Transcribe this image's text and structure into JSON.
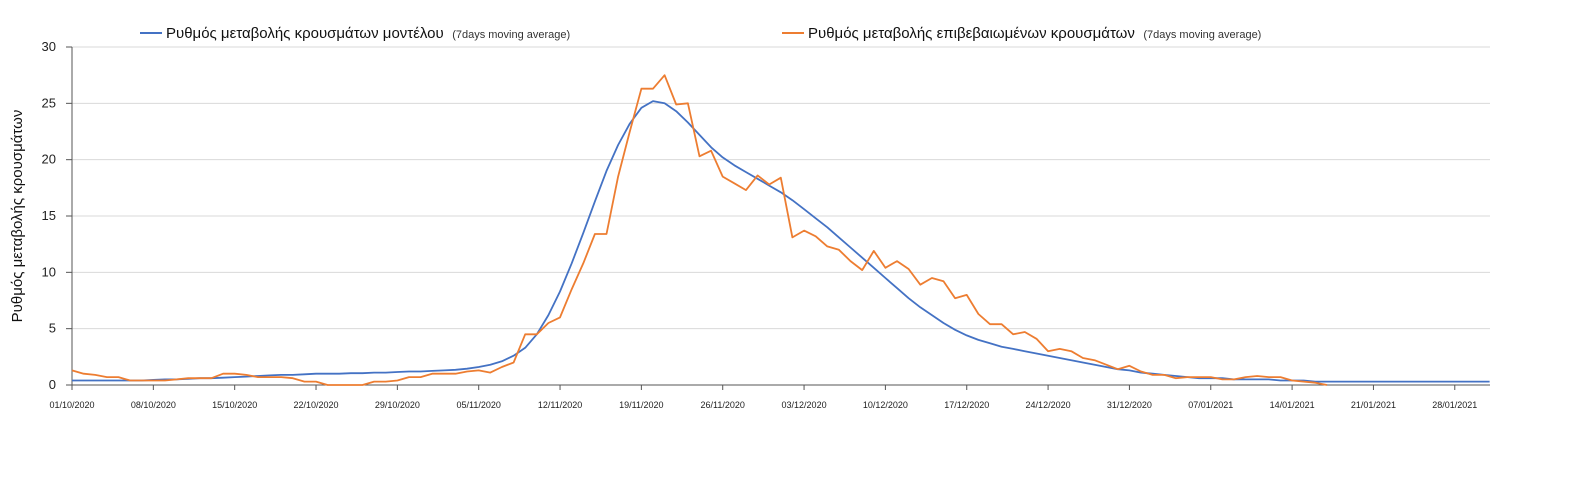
{
  "chart_data": {
    "type": "line",
    "title": "",
    "xlabel": "",
    "ylabel": "Ρυθμός μεταβολής κρουσμάτων",
    "ylim": [
      0,
      30
    ],
    "yticks": [
      0,
      5,
      10,
      15,
      20,
      25,
      30
    ],
    "grid": "horizontal",
    "legend_position": "top",
    "start_date": "01/10/2020",
    "xtick_labels": [
      "01/10/2020",
      "08/10/2020",
      "15/10/2020",
      "22/10/2020",
      "29/10/2020",
      "05/11/2020",
      "12/11/2020",
      "19/11/2020",
      "26/11/2020",
      "03/12/2020",
      "10/12/2020",
      "17/12/2020",
      "24/12/2020",
      "31/12/2020",
      "07/01/2021",
      "14/01/2021",
      "21/01/2021",
      "28/01/2021"
    ],
    "series": [
      {
        "name": "Ρυθμός μεταβολής κρουσμάτων μοντέλου",
        "name_suffix": "(7days moving average)",
        "color": "#4472c4",
        "values": [
          0.4,
          0.4,
          0.4,
          0.4,
          0.4,
          0.4,
          0.4,
          0.45,
          0.5,
          0.5,
          0.55,
          0.6,
          0.6,
          0.65,
          0.7,
          0.75,
          0.8,
          0.85,
          0.9,
          0.9,
          0.95,
          1.0,
          1.0,
          1.0,
          1.05,
          1.05,
          1.1,
          1.1,
          1.15,
          1.2,
          1.2,
          1.25,
          1.3,
          1.35,
          1.45,
          1.6,
          1.8,
          2.1,
          2.6,
          3.3,
          4.5,
          6.2,
          8.3,
          10.8,
          13.5,
          16.3,
          19.0,
          21.3,
          23.2,
          24.6,
          25.2,
          25.0,
          24.3,
          23.3,
          22.2,
          21.1,
          20.2,
          19.5,
          18.9,
          18.3,
          17.7,
          17.1,
          16.4,
          15.6,
          14.8,
          14.0,
          13.1,
          12.2,
          11.3,
          10.4,
          9.5,
          8.6,
          7.7,
          6.9,
          6.2,
          5.5,
          4.9,
          4.4,
          4.0,
          3.7,
          3.4,
          3.2,
          3.0,
          2.8,
          2.6,
          2.4,
          2.2,
          2.0,
          1.8,
          1.6,
          1.4,
          1.3,
          1.1,
          1.0,
          0.9,
          0.8,
          0.7,
          0.6,
          0.6,
          0.6,
          0.5,
          0.5,
          0.5,
          0.5,
          0.4,
          0.4,
          0.4,
          0.3,
          0.3,
          0.3,
          0.3,
          0.3,
          0.3,
          0.3,
          0.3,
          0.3,
          0.3,
          0.3,
          0.3,
          0.3,
          0.3,
          0.3,
          0.3
        ]
      },
      {
        "name": "Ρυθμός μεταβολής επιβεβαιωμένων κρουσμάτων",
        "name_suffix": "(7days moving average)",
        "color": "#ed7d31",
        "values": [
          1.3,
          1.0,
          0.9,
          0.7,
          0.7,
          0.4,
          0.4,
          0.4,
          0.4,
          0.5,
          0.6,
          0.6,
          0.6,
          1.0,
          1.0,
          0.9,
          0.7,
          0.7,
          0.7,
          0.6,
          0.3,
          0.3,
          0.0,
          0.0,
          0.0,
          0.0,
          0.3,
          0.3,
          0.4,
          0.7,
          0.7,
          1.0,
          1.0,
          1.0,
          1.2,
          1.3,
          1.1,
          1.6,
          2.0,
          4.5,
          4.5,
          5.5,
          6.0,
          8.5,
          10.8,
          13.4,
          13.4,
          18.5,
          22.5,
          26.3,
          26.3,
          27.5,
          24.9,
          25.0,
          20.3,
          20.8,
          18.5,
          17.9,
          17.3,
          18.6,
          17.8,
          18.4,
          13.1,
          13.7,
          13.2,
          12.3,
          12.0,
          11.0,
          10.2,
          11.9,
          10.4,
          11.0,
          10.3,
          8.9,
          9.5,
          9.2,
          7.7,
          8.0,
          6.3,
          5.4,
          5.4,
          4.5,
          4.7,
          4.1,
          3.0,
          3.2,
          3.0,
          2.4,
          2.2,
          1.8,
          1.4,
          1.7,
          1.2,
          0.9,
          0.9,
          0.6,
          0.7,
          0.7,
          0.7,
          0.5,
          0.5,
          0.7,
          0.8,
          0.7,
          0.7,
          0.4,
          0.3,
          0.2,
          0.0
        ]
      }
    ]
  }
}
